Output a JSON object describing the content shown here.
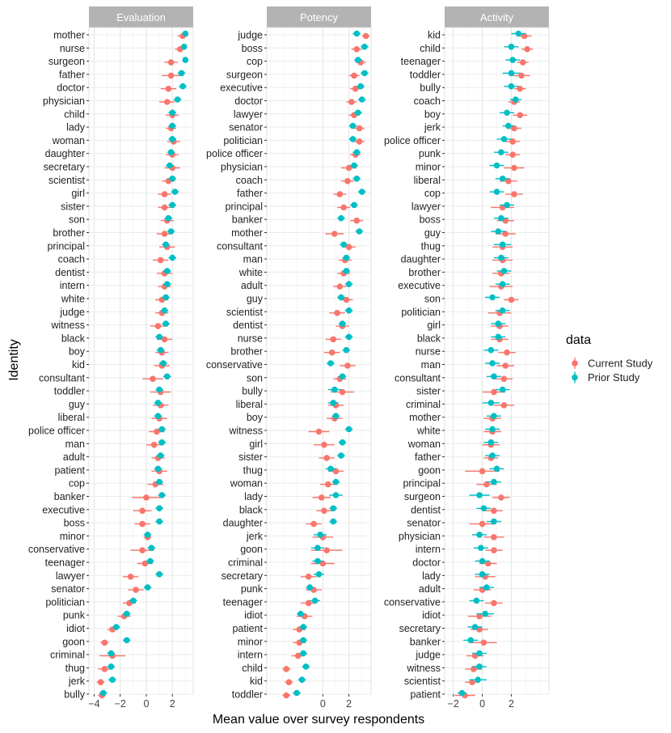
{
  "chart_data": {
    "type": "dot-errorbar",
    "xlabel": "Mean value over survey respondents",
    "ylabel": "Identity",
    "legend": {
      "title": "data",
      "entries": [
        {
          "name": "Current Study",
          "color": "#F8766D"
        },
        {
          "name": "Prior Study",
          "color": "#00BFC4"
        }
      ],
      "position": "right"
    },
    "facets": [
      {
        "title": "Evaluation",
        "xlim": [
          -4.4,
          3.6
        ],
        "xticks": [
          -4,
          -2,
          0,
          2
        ],
        "categories": [
          "mother",
          "nurse",
          "surgeon",
          "father",
          "doctor",
          "physician",
          "child",
          "lady",
          "woman",
          "daughter",
          "secretary",
          "scientist",
          "girl",
          "sister",
          "son",
          "brother",
          "principal",
          "coach",
          "dentist",
          "intern",
          "white",
          "judge",
          "witness",
          "black",
          "boy",
          "kid",
          "consultant",
          "toddler",
          "guy",
          "liberal",
          "police officer",
          "man",
          "adult",
          "patient",
          "cop",
          "banker",
          "executive",
          "boss",
          "minor",
          "conservative",
          "teenager",
          "lawyer",
          "senator",
          "politician",
          "punk",
          "idiot",
          "goon",
          "criminal",
          "thug",
          "jerk",
          "bully"
        ],
        "series": [
          {
            "name": "Current Study",
            "values": [
              2.8,
              2.6,
              1.9,
              1.9,
              1.7,
              1.6,
              2.0,
              1.9,
              2.1,
              2.0,
              2.0,
              1.7,
              1.4,
              1.4,
              1.6,
              1.4,
              1.6,
              1.1,
              1.4,
              1.4,
              1.2,
              1.2,
              0.9,
              1.4,
              1.2,
              1.2,
              0.5,
              1.1,
              1.1,
              1.0,
              0.8,
              0.6,
              0.9,
              1.0,
              0.7,
              0.0,
              -0.3,
              -0.3,
              0.1,
              -0.3,
              -0.1,
              -1.2,
              -0.8,
              -1.3,
              -1.7,
              -2.6,
              -3.2,
              -2.6,
              -3.2,
              -3.5,
              -3.4
            ],
            "errors": [
              0.4,
              0.4,
              0.5,
              0.7,
              0.6,
              0.6,
              0.5,
              0.4,
              0.5,
              0.5,
              0.6,
              0.5,
              0.5,
              0.5,
              0.5,
              0.6,
              0.6,
              0.6,
              0.6,
              0.5,
              0.5,
              0.5,
              0.6,
              0.6,
              0.5,
              0.6,
              0.8,
              0.8,
              0.6,
              0.6,
              0.6,
              0.6,
              0.5,
              0.6,
              0.6,
              1.1,
              0.7,
              0.6,
              0.3,
              0.9,
              0.6,
              0.6,
              0.6,
              0.5,
              0.5,
              0.4,
              0.3,
              1.0,
              0.5,
              0.3,
              0.3
            ]
          },
          {
            "name": "Prior Study",
            "values": [
              3.0,
              2.9,
              3.0,
              2.7,
              2.8,
              2.4,
              2.0,
              2.0,
              2.0,
              1.9,
              1.8,
              2.0,
              2.2,
              2.0,
              1.7,
              1.9,
              1.5,
              2.0,
              1.6,
              1.6,
              1.5,
              1.4,
              1.5,
              1.0,
              1.1,
              1.3,
              1.6,
              1.0,
              0.9,
              0.9,
              1.2,
              1.2,
              1.1,
              0.9,
              1.0,
              1.2,
              1.0,
              1.0,
              0.1,
              0.4,
              0.3,
              1.0,
              0.1,
              -1.0,
              -1.5,
              -2.3,
              -1.5,
              -2.7,
              -2.7,
              -2.6,
              -3.3
            ],
            "errors": [
              0.2,
              0.2,
              0.2,
              0.3,
              0.3,
              0.3,
              0.3,
              0.3,
              0.3,
              0.3,
              0.3,
              0.3,
              0.3,
              0.3,
              0.3,
              0.3,
              0.3,
              0.3,
              0.3,
              0.3,
              0.3,
              0.3,
              0.3,
              0.3,
              0.3,
              0.3,
              0.3,
              0.3,
              0.3,
              0.3,
              0.3,
              0.3,
              0.3,
              0.3,
              0.3,
              0.3,
              0.3,
              0.3,
              0.3,
              0.3,
              0.3,
              0.3,
              0.3,
              0.3,
              0.3,
              0.3,
              0.3,
              0.3,
              0.3,
              0.3,
              0.3
            ]
          }
        ]
      },
      {
        "title": "Potency",
        "xlim": [
          -4.3,
          3.7
        ],
        "xticks": [
          0,
          2
        ],
        "categories": [
          "judge",
          "boss",
          "cop",
          "surgeon",
          "executive",
          "doctor",
          "lawyer",
          "senator",
          "politician",
          "police officer",
          "physician",
          "coach",
          "father",
          "principal",
          "banker",
          "mother",
          "consultant",
          "man",
          "white",
          "adult",
          "guy",
          "scientist",
          "dentist",
          "nurse",
          "brother",
          "conservative",
          "son",
          "bully",
          "liberal",
          "boy",
          "witness",
          "girl",
          "sister",
          "thug",
          "woman",
          "lady",
          "black",
          "daughter",
          "jerk",
          "goon",
          "criminal",
          "secretary",
          "punk",
          "teenager",
          "idiot",
          "patient",
          "minor",
          "intern",
          "child",
          "kid",
          "toddler"
        ],
        "series": [
          {
            "name": "Current Study",
            "values": [
              3.3,
              2.6,
              2.9,
              2.4,
              2.5,
              2.2,
              2.4,
              2.8,
              2.8,
              2.5,
              2.0,
              1.9,
              1.3,
              1.6,
              2.6,
              0.9,
              2.0,
              1.7,
              1.6,
              1.3,
              1.8,
              1.1,
              1.5,
              0.8,
              0.7,
              1.9,
              1.3,
              1.5,
              1.0,
              0.9,
              -0.3,
              0.1,
              0.3,
              1.0,
              0.4,
              -0.1,
              0.1,
              -0.7,
              0.0,
              0.3,
              0.0,
              -1.1,
              -0.7,
              -1.1,
              -1.4,
              -1.8,
              -1.8,
              -1.9,
              -2.8,
              -2.6,
              -2.8
            ],
            "errors": [
              0.3,
              0.4,
              0.4,
              0.4,
              0.4,
              0.4,
              0.4,
              0.4,
              0.4,
              0.4,
              0.6,
              0.5,
              0.5,
              0.5,
              0.5,
              0.7,
              0.5,
              0.5,
              0.5,
              0.5,
              0.5,
              0.6,
              0.5,
              0.6,
              0.6,
              0.6,
              0.5,
              0.9,
              0.6,
              0.6,
              0.8,
              0.8,
              0.6,
              0.6,
              0.6,
              0.7,
              0.6,
              0.6,
              0.8,
              1.2,
              0.9,
              0.6,
              0.6,
              0.6,
              0.6,
              0.5,
              0.5,
              0.5,
              0.3,
              0.3,
              0.3
            ]
          },
          {
            "name": "Prior Study",
            "values": [
              2.6,
              3.2,
              2.7,
              3.2,
              2.9,
              3.0,
              2.7,
              2.3,
              2.3,
              2.6,
              2.4,
              2.6,
              3.0,
              2.4,
              1.4,
              2.8,
              1.6,
              1.8,
              1.8,
              2.0,
              1.4,
              2.0,
              1.5,
              2.0,
              1.8,
              0.6,
              1.5,
              0.9,
              0.8,
              1.0,
              2.0,
              1.5,
              1.4,
              0.6,
              1.0,
              1.0,
              0.8,
              0.8,
              -0.2,
              -0.4,
              -0.4,
              -0.3,
              -1.0,
              -0.6,
              -1.7,
              -1.5,
              -1.5,
              -1.5,
              -1.3,
              -1.6,
              -2.0
            ],
            "errors": [
              0.3,
              0.3,
              0.3,
              0.3,
              0.3,
              0.3,
              0.3,
              0.3,
              0.3,
              0.3,
              0.3,
              0.3,
              0.3,
              0.3,
              0.3,
              0.3,
              0.3,
              0.3,
              0.3,
              0.3,
              0.3,
              0.3,
              0.3,
              0.3,
              0.3,
              0.3,
              0.3,
              0.5,
              0.4,
              0.3,
              0.3,
              0.3,
              0.3,
              0.4,
              0.3,
              0.5,
              0.3,
              0.3,
              0.5,
              0.5,
              0.4,
              0.4,
              0.3,
              0.4,
              0.3,
              0.3,
              0.3,
              0.3,
              0.3,
              0.3,
              0.3
            ]
          }
        ]
      },
      {
        "title": "Activity",
        "xlim": [
          -2.6,
          4.6
        ],
        "xticks": [
          -2,
          0,
          2
        ],
        "categories": [
          "kid",
          "child",
          "teenager",
          "toddler",
          "bully",
          "coach",
          "boy",
          "jerk",
          "police officer",
          "punk",
          "minor",
          "liberal",
          "cop",
          "lawyer",
          "boss",
          "guy",
          "thug",
          "daughter",
          "brother",
          "executive",
          "son",
          "politician",
          "girl",
          "black",
          "nurse",
          "man",
          "consultant",
          "sister",
          "criminal",
          "mother",
          "white",
          "woman",
          "father",
          "goon",
          "principal",
          "surgeon",
          "dentist",
          "senator",
          "physician",
          "intern",
          "doctor",
          "lady",
          "adult",
          "conservative",
          "idiot",
          "secretary",
          "banker",
          "judge",
          "witness",
          "scientist",
          "patient"
        ],
        "series": [
          {
            "name": "Current Study",
            "values": [
              2.9,
              3.1,
              2.8,
              2.7,
              2.6,
              2.2,
              2.6,
              2.2,
              2.1,
              2.1,
              2.2,
              1.8,
              2.2,
              1.4,
              1.6,
              1.6,
              1.4,
              1.4,
              1.3,
              1.3,
              2.0,
              1.2,
              1.2,
              1.2,
              1.7,
              1.6,
              1.5,
              0.8,
              1.5,
              0.7,
              0.7,
              0.6,
              0.6,
              0.0,
              0.3,
              1.3,
              0.8,
              0.0,
              0.8,
              0.8,
              0.4,
              0.2,
              0.0,
              0.8,
              -0.2,
              -0.2,
              0.1,
              -0.5,
              -0.6,
              -0.7,
              -1.2
            ],
            "errors": [
              0.5,
              0.4,
              0.4,
              0.6,
              0.4,
              0.4,
              0.5,
              0.5,
              0.5,
              0.5,
              0.7,
              0.6,
              0.6,
              0.8,
              0.6,
              0.7,
              0.7,
              0.7,
              0.6,
              0.8,
              0.5,
              0.8,
              0.6,
              0.6,
              0.6,
              0.6,
              0.6,
              0.8,
              0.7,
              0.6,
              0.6,
              0.6,
              0.5,
              1.2,
              0.7,
              0.6,
              0.6,
              0.9,
              0.7,
              0.6,
              0.6,
              0.7,
              0.6,
              0.6,
              0.8,
              0.6,
              0.9,
              0.6,
              0.6,
              0.5,
              0.7
            ]
          },
          {
            "name": "Prior Study",
            "values": [
              2.5,
              2.0,
              2.1,
              2.0,
              2.0,
              2.3,
              1.7,
              1.8,
              1.5,
              1.3,
              1.0,
              1.4,
              1.0,
              1.7,
              1.3,
              1.1,
              1.4,
              1.3,
              1.5,
              1.4,
              0.7,
              1.4,
              1.1,
              1.1,
              0.6,
              0.7,
              0.8,
              1.4,
              0.6,
              0.8,
              0.7,
              0.6,
              0.7,
              1.0,
              0.8,
              -0.2,
              0.1,
              0.8,
              -0.2,
              -0.1,
              0.0,
              0.0,
              0.3,
              -0.4,
              0.2,
              -0.5,
              -0.8,
              -0.2,
              -0.2,
              -0.3,
              -1.4
            ],
            "errors": [
              0.5,
              0.5,
              0.5,
              0.6,
              0.5,
              0.4,
              0.5,
              0.4,
              0.5,
              0.5,
              0.5,
              0.5,
              0.5,
              0.5,
              0.5,
              0.5,
              0.6,
              0.5,
              0.5,
              0.5,
              0.5,
              0.5,
              0.5,
              0.5,
              0.5,
              0.5,
              0.5,
              0.5,
              0.6,
              0.5,
              0.5,
              0.5,
              0.5,
              0.5,
              0.5,
              0.7,
              0.5,
              0.5,
              0.5,
              0.5,
              0.5,
              0.5,
              0.5,
              0.5,
              0.6,
              0.5,
              0.5,
              0.5,
              0.5,
              0.6,
              0.3
            ]
          }
        ]
      }
    ]
  }
}
